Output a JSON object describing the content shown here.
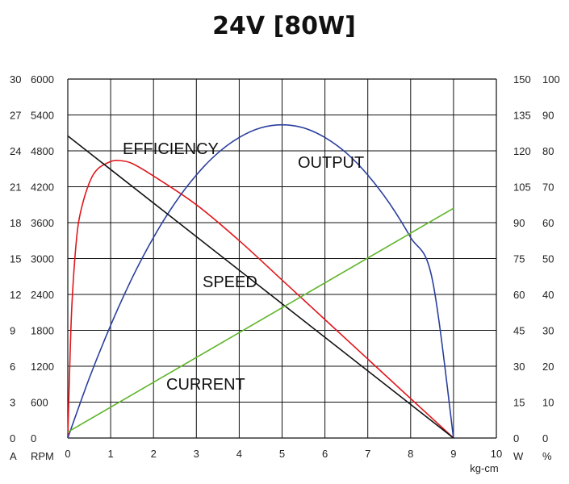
{
  "chart_data": {
    "type": "line",
    "title": "24V [80W]",
    "xlabel": "kg-cm",
    "x_ticks": [
      0,
      1,
      2,
      3,
      4,
      5,
      6,
      7,
      8,
      9,
      10
    ],
    "xlim": [
      0,
      10
    ],
    "grid": true,
    "axes": {
      "current_A": {
        "label": "A",
        "ticks": [
          0,
          3,
          6,
          9,
          12,
          15,
          18,
          21,
          24,
          27,
          30
        ],
        "range": [
          0,
          30
        ]
      },
      "speed_RPM": {
        "label": "RPM",
        "ticks": [
          0,
          600,
          1200,
          1800,
          2400,
          3000,
          3600,
          4200,
          4800,
          5400,
          6000
        ],
        "range": [
          0,
          6000
        ]
      },
      "output_W": {
        "label": "W",
        "ticks": [
          0,
          15,
          30,
          45,
          60,
          75,
          90,
          105,
          120,
          135,
          150
        ],
        "range": [
          0,
          150
        ]
      },
      "efficiency_pct": {
        "label": "%",
        "ticks": [
          0,
          10,
          20,
          30,
          40,
          50,
          60,
          70,
          80,
          90,
          100
        ],
        "range": [
          0,
          100
        ]
      }
    },
    "series": [
      {
        "name": "EFFICIENCY",
        "axis": "efficiency_pct",
        "color": "#e0161c",
        "x": [
          0,
          0.05,
          0.1,
          0.2,
          0.3,
          0.5,
          0.7,
          1.0,
          1.2,
          1.5,
          2.0,
          3.0,
          4.0,
          5.0,
          6.0,
          7.0,
          8.0,
          9.0
        ],
        "values": [
          0,
          22,
          38,
          55,
          63,
          71,
          75,
          77,
          77.3,
          76.5,
          73,
          65,
          55,
          44,
          33,
          22,
          11,
          0
        ]
      },
      {
        "name": "OUTPUT",
        "axis": "output_W",
        "color": "#2a3f9d",
        "x": [
          0,
          0.5,
          1,
          1.5,
          2,
          2.5,
          3,
          3.5,
          4,
          4.5,
          5,
          5.5,
          6,
          6.5,
          7,
          7.5,
          8,
          8.5,
          9
        ],
        "values": [
          0,
          24.9,
          47.1,
          66.8,
          83.8,
          98.2,
          109.9,
          119.1,
          125.6,
          129.6,
          130.9,
          129.6,
          125.6,
          119.1,
          109.9,
          98.2,
          83.8,
          66.8,
          0
        ]
      },
      {
        "name": "SPEED",
        "axis": "speed_RPM",
        "color": "#111111",
        "x": [
          0,
          9
        ],
        "values": [
          5050,
          0
        ]
      },
      {
        "name": "CURRENT",
        "axis": "current_A",
        "color": "#5fb52b",
        "x": [
          0,
          9
        ],
        "values": [
          0.5,
          19.2
        ]
      }
    ]
  }
}
